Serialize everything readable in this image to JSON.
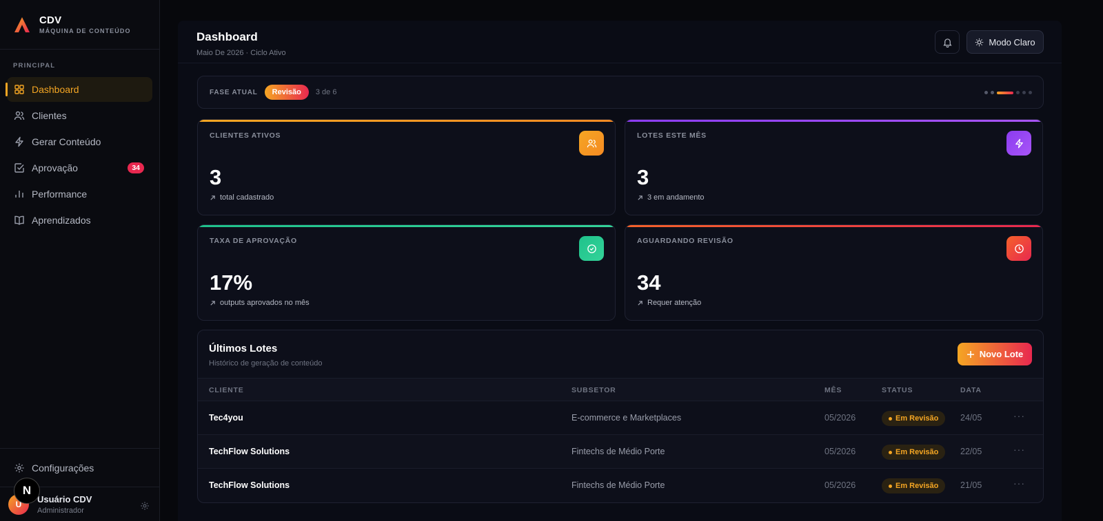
{
  "brand": {
    "name": "CDV",
    "tagline": "MÁQUINA DE CONTEÚDO"
  },
  "sidebar": {
    "section_label": "PRINCIPAL",
    "items": [
      {
        "label": "Dashboard",
        "icon": "grid-icon",
        "active": true
      },
      {
        "label": "Clientes",
        "icon": "users-icon"
      },
      {
        "label": "Gerar Conteúdo",
        "icon": "bolt-icon"
      },
      {
        "label": "Aprovação",
        "icon": "check-square-icon",
        "badge": "34"
      },
      {
        "label": "Performance",
        "icon": "bar-chart-icon"
      },
      {
        "label": "Aprendizados",
        "icon": "book-icon"
      }
    ],
    "settings_label": "Configurações",
    "user": {
      "initial": "U",
      "name": "Usuário CDV",
      "role": "Administrador"
    },
    "dev_badge": "N"
  },
  "header": {
    "title": "Dashboard",
    "subtitle": "Maio De 2026 · Ciclo Ativo",
    "mode_button": "Modo Claro"
  },
  "phase": {
    "label": "FASE ATUAL",
    "current": "Revisão",
    "progress": "3 de 6",
    "step": 3,
    "total": 6
  },
  "stats": [
    {
      "label": "CLIENTES ATIVOS",
      "value": "3",
      "foot": "total cadastrado",
      "icon": "users-icon",
      "color": "#f5a623"
    },
    {
      "label": "LOTES ESTE MÊS",
      "value": "3",
      "foot": "3 em andamento",
      "icon": "bolt-icon",
      "color": "#8b3cf0"
    },
    {
      "label": "TAXA DE APROVAÇÃO",
      "value": "17%",
      "foot": "outputs aprovados no mês",
      "icon": "check-circle-icon",
      "color": "#1fc28b"
    },
    {
      "label": "AGUARDANDO REVISÃO",
      "value": "34",
      "foot": "Requer atenção",
      "icon": "clock-icon",
      "color": "#e8284f"
    }
  ],
  "lotes": {
    "title": "Últimos Lotes",
    "subtitle": "Histórico de geração de conteúdo",
    "new_button": "Novo Lote",
    "columns": [
      "CLIENTE",
      "SUBSETOR",
      "MÊS",
      "STATUS",
      "DATA"
    ],
    "rows": [
      {
        "cliente": "Tec4you",
        "subsetor": "E-commerce e Marketplaces",
        "mes": "05/2026",
        "status": "Em Revisão",
        "data": "24/05"
      },
      {
        "cliente": "TechFlow Solutions",
        "subsetor": "Fintechs de Médio Porte",
        "mes": "05/2026",
        "status": "Em Revisão",
        "data": "22/05"
      },
      {
        "cliente": "TechFlow Solutions",
        "subsetor": "Fintechs de Médio Porte",
        "mes": "05/2026",
        "status": "Em Revisão",
        "data": "21/05"
      }
    ]
  }
}
